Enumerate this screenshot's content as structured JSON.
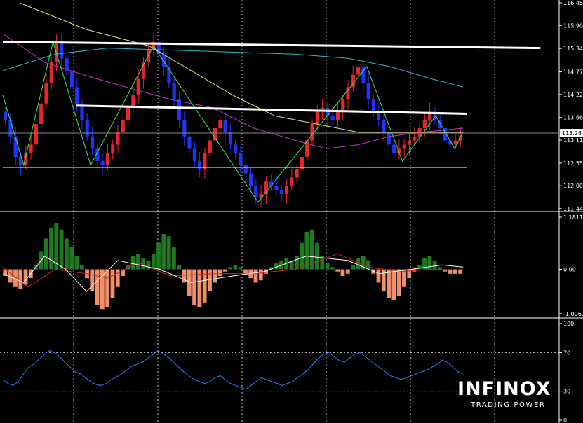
{
  "logo": {
    "brand": "INFINOX",
    "tagline": "TRADING POWER"
  },
  "colors": {
    "background": "#000000",
    "bull_candle": "#e8262a",
    "bear_candle": "#2133ff",
    "ma_fast": "#cc33cc",
    "ma_mid": "#e6e66a",
    "ma_slow": "#33b8c8",
    "zigzag": "#33ee55",
    "level_lines": "#ffffff",
    "hist_positive": "#1f7a1f",
    "hist_negative": "#f0906a",
    "macd_main": "#ffffff",
    "macd_signal": "#dd2222",
    "rsi_line": "#3a78ff",
    "grid": "#cccccc"
  },
  "chart_data": [
    {
      "type": "candlestick",
      "pane": "price",
      "y_ticks": [
        "116.45",
        "115.90",
        "115.34",
        "114.77",
        "114.22",
        "113.66",
        "113.11",
        "112.55",
        "112.00",
        "111.44"
      ],
      "current_price": "113.28",
      "ylim": [
        111.44,
        116.45
      ],
      "grid": true,
      "x_bars": 220,
      "closes": [
        113.6,
        113.2,
        112.7,
        112.5,
        112.8,
        113.0,
        113.5,
        114.0,
        114.5,
        115.0,
        115.5,
        115.1,
        114.8,
        114.4,
        114.0,
        113.6,
        113.2,
        112.9,
        112.6,
        112.5,
        112.8,
        113.0,
        113.3,
        113.6,
        113.9,
        114.2,
        114.6,
        115.0,
        115.3,
        115.5,
        115.2,
        114.9,
        114.5,
        114.1,
        113.6,
        113.2,
        112.9,
        112.6,
        112.4,
        112.8,
        113.1,
        113.4,
        113.6,
        113.3,
        113.0,
        112.8,
        112.5,
        112.3,
        112.0,
        111.7,
        111.8,
        112.1,
        112.0,
        111.9,
        111.8,
        112.0,
        112.2,
        112.4,
        112.7,
        113.1,
        113.5,
        113.8,
        113.9,
        113.7,
        113.6,
        113.8,
        114.1,
        114.4,
        114.7,
        114.9,
        114.5,
        114.1,
        113.8,
        113.6,
        113.3,
        113.0,
        112.8,
        112.9,
        113.0,
        113.1,
        113.2,
        113.4,
        113.6,
        113.8,
        113.6,
        113.4,
        113.1,
        113.0,
        113.1,
        113.2
      ],
      "zigzag": [
        [
          0,
          114.2
        ],
        [
          10,
          112.5
        ],
        [
          24,
          115.5
        ],
        [
          42,
          112.5
        ],
        [
          72,
          115.4
        ],
        [
          122,
          111.6
        ],
        [
          174,
          114.9
        ],
        [
          191,
          112.6
        ],
        [
          207,
          113.7
        ],
        [
          216,
          112.9
        ],
        [
          220,
          113.3
        ]
      ],
      "horizontal_levels": [
        {
          "x0": 0,
          "y0": 115.5,
          "x1": 257,
          "y1": 115.35
        },
        {
          "x0": 35,
          "y0": 113.95,
          "x1": 222,
          "y1": 113.75
        },
        {
          "x0": 0,
          "y0": 112.45,
          "x1": 222,
          "y1": 112.45
        }
      ],
      "ma_fast": [
        [
          0,
          115.7
        ],
        [
          20,
          115.0
        ],
        [
          45,
          114.6
        ],
        [
          80,
          114.1
        ],
        [
          100,
          113.9
        ],
        [
          120,
          113.4
        ],
        [
          140,
          113.1
        ],
        [
          155,
          112.9
        ],
        [
          170,
          113.0
        ],
        [
          185,
          113.2
        ],
        [
          200,
          113.3
        ],
        [
          220,
          113.4
        ]
      ],
      "ma_mid": [
        [
          8,
          116.45
        ],
        [
          40,
          115.8
        ],
        [
          70,
          115.4
        ],
        [
          90,
          114.8
        ],
        [
          110,
          114.2
        ],
        [
          130,
          113.7
        ],
        [
          150,
          113.5
        ],
        [
          170,
          113.3
        ],
        [
          190,
          113.3
        ],
        [
          205,
          113.3
        ],
        [
          220,
          113.3
        ]
      ],
      "ma_slow": [
        [
          0,
          114.8
        ],
        [
          25,
          115.2
        ],
        [
          50,
          115.35
        ],
        [
          80,
          115.3
        ],
        [
          110,
          115.25
        ],
        [
          140,
          115.2
        ],
        [
          165,
          115.1
        ],
        [
          185,
          114.9
        ],
        [
          205,
          114.6
        ],
        [
          220,
          114.4
        ]
      ]
    },
    {
      "type": "histogram",
      "pane": "macd",
      "y_ticks": [
        "1.18112",
        "0.00",
        "-1.00611"
      ],
      "ylim": [
        -1.00611,
        1.18112
      ],
      "grid": true,
      "hist": [
        -0.15,
        -0.3,
        -0.4,
        -0.45,
        -0.35,
        -0.2,
        0.1,
        0.4,
        0.7,
        0.95,
        1.05,
        0.9,
        0.7,
        0.5,
        0.3,
        0.1,
        -0.2,
        -0.5,
        -0.8,
        -0.9,
        -0.85,
        -0.65,
        -0.4,
        -0.15,
        0.1,
        0.3,
        0.35,
        0.25,
        0.2,
        0.35,
        0.6,
        0.8,
        0.75,
        0.5,
        0.1,
        -0.3,
        -0.6,
        -0.8,
        -0.85,
        -0.75,
        -0.5,
        -0.3,
        -0.15,
        -0.05,
        0.05,
        0.1,
        0.05,
        -0.1,
        -0.2,
        -0.3,
        -0.25,
        -0.1,
        0.05,
        0.15,
        0.2,
        0.25,
        0.2,
        0.3,
        0.6,
        0.85,
        0.9,
        0.6,
        0.3,
        0.15,
        0.05,
        -0.05,
        -0.15,
        -0.1,
        0.1,
        0.25,
        0.3,
        0.2,
        -0.1,
        -0.3,
        -0.5,
        -0.65,
        -0.7,
        -0.6,
        -0.4,
        -0.2,
        -0.05,
        0.1,
        0.25,
        0.3,
        0.2,
        0.05,
        -0.05,
        -0.1,
        -0.1,
        -0.1
      ],
      "macd_main": [
        [
          0,
          -0.1
        ],
        [
          10,
          -0.3
        ],
        [
          20,
          0.3
        ],
        [
          30,
          0.0
        ],
        [
          40,
          -0.5
        ],
        [
          55,
          0.2
        ],
        [
          75,
          0.0
        ],
        [
          90,
          -0.3
        ],
        [
          110,
          -0.15
        ],
        [
          125,
          -0.05
        ],
        [
          145,
          0.3
        ],
        [
          165,
          0.2
        ],
        [
          180,
          -0.1
        ],
        [
          195,
          0.0
        ],
        [
          210,
          0.1
        ],
        [
          220,
          0.05
        ]
      ],
      "macd_signal": [
        [
          0,
          0.05
        ],
        [
          12,
          -0.4
        ],
        [
          25,
          0.0
        ],
        [
          40,
          -0.1
        ],
        [
          50,
          -0.2
        ],
        [
          65,
          0.15
        ],
        [
          80,
          -0.15
        ],
        [
          100,
          -0.1
        ],
        [
          120,
          -0.1
        ],
        [
          140,
          0.0
        ],
        [
          160,
          0.35
        ],
        [
          175,
          0.05
        ],
        [
          190,
          -0.05
        ],
        [
          205,
          0.0
        ],
        [
          220,
          -0.02
        ]
      ]
    },
    {
      "type": "line",
      "pane": "rsi",
      "y_ticks": [
        "100",
        "70",
        "30",
        "0"
      ],
      "ylim": [
        0,
        100
      ],
      "grid": true,
      "levels": [
        30,
        70
      ],
      "values": [
        42,
        38,
        36,
        40,
        48,
        55,
        58,
        63,
        68,
        72,
        70,
        66,
        60,
        55,
        50,
        48,
        44,
        40,
        37,
        36,
        38,
        42,
        45,
        48,
        52,
        56,
        58,
        60,
        64,
        68,
        72,
        69,
        65,
        60,
        55,
        50,
        46,
        42,
        40,
        38,
        40,
        44,
        46,
        42,
        38,
        36,
        34,
        32,
        36,
        40,
        44,
        42,
        40,
        38,
        36,
        38,
        40,
        44,
        48,
        52,
        58,
        64,
        68,
        70,
        66,
        62,
        60,
        64,
        68,
        70,
        66,
        62,
        58,
        54,
        50,
        46,
        44,
        42,
        44,
        46,
        48,
        50,
        52,
        55,
        58,
        62,
        60,
        55,
        50,
        48
      ]
    }
  ]
}
